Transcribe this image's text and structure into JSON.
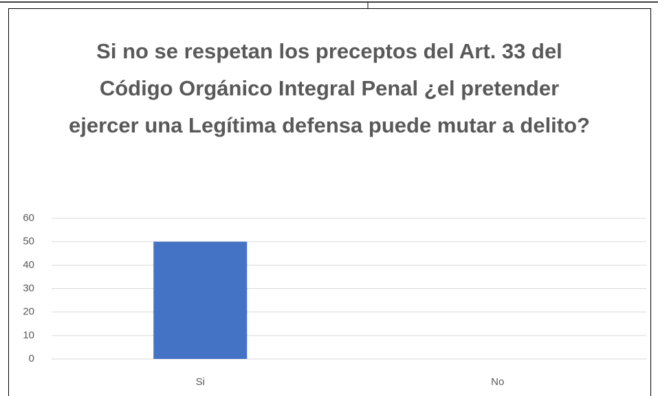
{
  "chart_data": {
    "type": "bar",
    "title": "Si no se respetan los preceptos del Art. 33 del Código Orgánico Integral Penal ¿el pretender ejercer una Legítima defensa puede mutar a delito?",
    "categories": [
      "Si",
      "No"
    ],
    "values": [
      50,
      0
    ],
    "color": "#4472c4",
    "ylim": [
      0,
      60
    ],
    "yticks": [
      0,
      10,
      20,
      30,
      40,
      50,
      60
    ],
    "grid": true
  }
}
